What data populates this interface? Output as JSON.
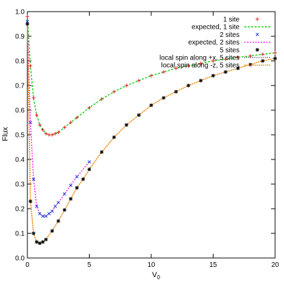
{
  "chart_data": {
    "type": "scatter",
    "title": "",
    "xlabel": "V",
    "xlabel_subscript": "0",
    "ylabel": "Flux",
    "xlim": [
      0,
      20
    ],
    "ylim": [
      0,
      1
    ],
    "xticks": [
      "0",
      "5",
      "10",
      "15",
      "20"
    ],
    "yticks": [
      "0.0",
      "0.1",
      "0.2",
      "0.3",
      "0.4",
      "0.5",
      "0.6",
      "0.7",
      "0.8",
      "0.9",
      "1.0"
    ],
    "grid": false,
    "legend_position": "top-right",
    "series": [
      {
        "name": "1 site",
        "kind": "points",
        "marker": "plus",
        "color": "#e41a1c",
        "x": [
          0,
          0.25,
          0.5,
          0.75,
          1.0,
          1.25,
          1.5,
          1.75,
          2.0,
          2.25,
          2.5,
          3.0,
          3.5,
          4.0,
          5.0,
          6.0,
          7.0,
          8.0,
          9.0,
          10.0,
          11.0,
          12.0,
          13.0,
          14.0,
          15.0,
          16.0,
          17.0,
          18.0,
          19.0,
          20.0
        ],
        "y": [
          0.98,
          0.78,
          0.65,
          0.58,
          0.54,
          0.52,
          0.505,
          0.5,
          0.5,
          0.505,
          0.51,
          0.53,
          0.55,
          0.57,
          0.61,
          0.645,
          0.675,
          0.7,
          0.72,
          0.74,
          0.755,
          0.77,
          0.78,
          0.79,
          0.8,
          0.807,
          0.815,
          0.82,
          0.827,
          0.833
        ]
      },
      {
        "name": "expected, 1 site",
        "kind": "line",
        "dash": "3,2",
        "color": "#00cc00",
        "x": [
          0,
          0.25,
          0.5,
          0.75,
          1.0,
          1.25,
          1.5,
          1.75,
          2.0,
          2.25,
          2.5,
          3.0,
          3.5,
          4.0,
          5.0,
          6.0,
          7.0,
          8.0,
          9.0,
          10.0,
          11.0,
          12.0,
          13.0,
          14.0,
          15.0,
          16.0,
          17.0,
          18.0,
          19.0,
          20.0
        ],
        "y": [
          0.98,
          0.78,
          0.65,
          0.58,
          0.54,
          0.52,
          0.505,
          0.5,
          0.5,
          0.505,
          0.51,
          0.53,
          0.55,
          0.57,
          0.61,
          0.645,
          0.675,
          0.7,
          0.72,
          0.74,
          0.755,
          0.77,
          0.78,
          0.79,
          0.8,
          0.807,
          0.815,
          0.82,
          0.827,
          0.833
        ]
      },
      {
        "name": "2 sites",
        "kind": "points",
        "marker": "cross",
        "color": "#1f3fd0",
        "x": [
          0,
          0.25,
          0.5,
          0.75,
          1.0,
          1.25,
          1.5,
          1.75,
          2.0,
          2.25,
          2.5,
          3.0,
          3.5,
          4.0,
          5.0
        ],
        "y": [
          0.96,
          0.55,
          0.32,
          0.21,
          0.18,
          0.17,
          0.17,
          0.18,
          0.19,
          0.21,
          0.225,
          0.26,
          0.295,
          0.33,
          0.39
        ]
      },
      {
        "name": "expected, 2 sites",
        "kind": "line",
        "dash": "2,2",
        "color": "#ff00ff",
        "x": [
          0,
          0.25,
          0.5,
          0.75,
          1.0,
          1.25,
          1.5,
          1.75,
          2.0,
          2.25,
          2.5,
          3.0,
          3.5,
          4.0,
          5.0
        ],
        "y": [
          0.96,
          0.55,
          0.32,
          0.21,
          0.18,
          0.17,
          0.17,
          0.18,
          0.19,
          0.21,
          0.225,
          0.26,
          0.295,
          0.33,
          0.39
        ]
      },
      {
        "name": "5 sites",
        "kind": "points",
        "marker": "star",
        "color": "#000000",
        "x": [
          0,
          0.25,
          0.5,
          0.75,
          1.0,
          1.25,
          1.5,
          2.0,
          2.5,
          3.0,
          3.5,
          4.0,
          4.5,
          5.0,
          6.0,
          7.0,
          8.0,
          9.0,
          10.0,
          11.0,
          12.0,
          13.0,
          14.0,
          15.0,
          16.0,
          17.0,
          18.0,
          19.0,
          20.0
        ],
        "y": [
          0.95,
          0.23,
          0.1,
          0.065,
          0.06,
          0.065,
          0.075,
          0.11,
          0.15,
          0.195,
          0.24,
          0.285,
          0.32,
          0.36,
          0.43,
          0.49,
          0.54,
          0.58,
          0.62,
          0.65,
          0.675,
          0.7,
          0.72,
          0.74,
          0.755,
          0.77,
          0.785,
          0.8,
          0.81
        ]
      },
      {
        "name": "local spin along +x, 5 sites",
        "kind": "line",
        "dash": "1,2",
        "color": "#000000",
        "x": [
          0,
          0.25,
          0.5,
          0.75,
          1.0,
          1.25,
          1.5,
          2.0,
          2.5,
          3.0,
          3.5,
          4.0,
          4.5,
          5.0,
          6.0,
          7.0,
          8.0,
          9.0,
          10.0,
          11.0,
          12.0,
          13.0,
          14.0,
          15.0,
          16.0,
          17.0,
          18.0,
          19.0,
          20.0
        ],
        "y": [
          0.95,
          0.23,
          0.1,
          0.065,
          0.06,
          0.065,
          0.075,
          0.11,
          0.15,
          0.195,
          0.24,
          0.285,
          0.32,
          0.36,
          0.43,
          0.49,
          0.54,
          0.58,
          0.62,
          0.65,
          0.675,
          0.7,
          0.72,
          0.74,
          0.755,
          0.77,
          0.785,
          0.8,
          0.81
        ]
      },
      {
        "name": "local spin along  -z, 5 sites",
        "kind": "line",
        "dash": "2,1",
        "color": "#ff8c00",
        "x": [
          0,
          0.25,
          0.5,
          0.75,
          1.0,
          1.25,
          1.5,
          2.0,
          2.5,
          3.0,
          3.5,
          4.0,
          4.5,
          5.0,
          6.0,
          7.0,
          8.0,
          9.0,
          10.0,
          11.0,
          12.0,
          13.0,
          14.0,
          15.0,
          16.0,
          17.0,
          18.0,
          19.0,
          20.0
        ],
        "y": [
          0.95,
          0.23,
          0.1,
          0.065,
          0.06,
          0.065,
          0.075,
          0.11,
          0.15,
          0.195,
          0.24,
          0.285,
          0.32,
          0.36,
          0.43,
          0.49,
          0.54,
          0.58,
          0.62,
          0.65,
          0.675,
          0.7,
          0.72,
          0.74,
          0.755,
          0.77,
          0.785,
          0.8,
          0.81
        ]
      }
    ]
  }
}
